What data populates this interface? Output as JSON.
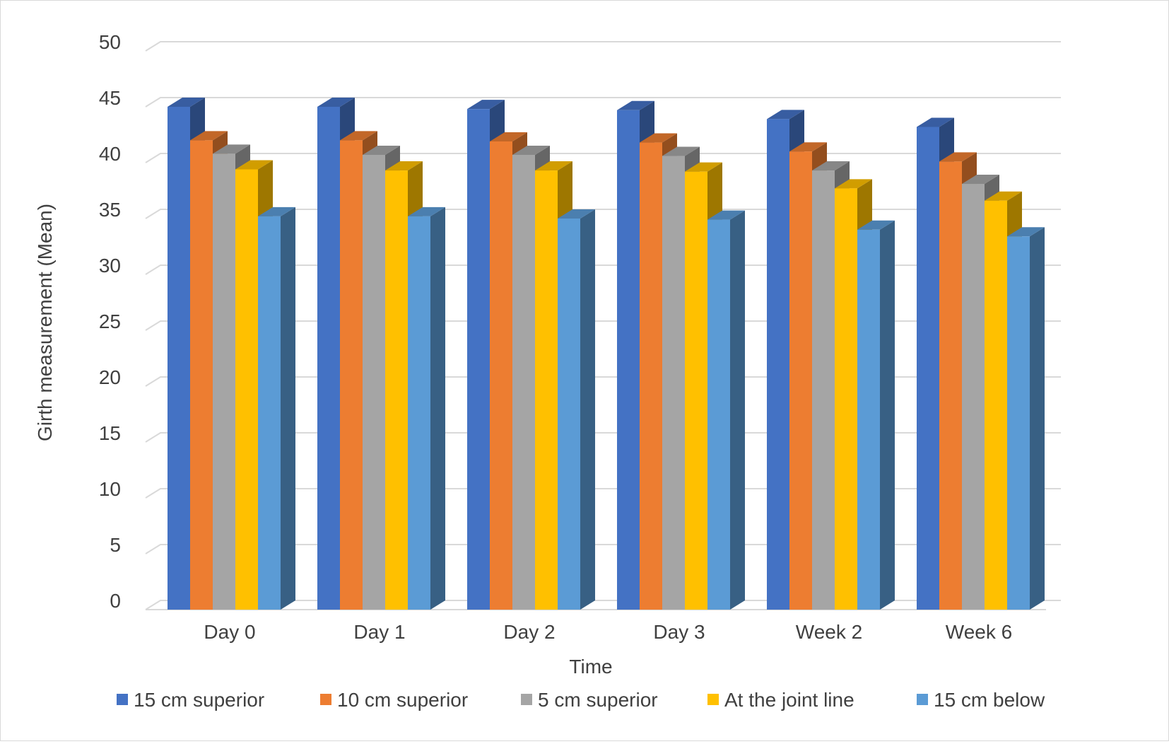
{
  "chart_data": {
    "type": "bar",
    "title": "",
    "xlabel": "Time",
    "ylabel": "Girth measurement (Mean)",
    "ylim": [
      0,
      50
    ],
    "yticks": [
      0,
      5,
      10,
      15,
      20,
      25,
      30,
      35,
      40,
      45,
      50
    ],
    "grid": true,
    "legend_position": "bottom",
    "categories": [
      "Day 0",
      "Day 1",
      "Day 2",
      "Day 3",
      "Week 2",
      "Week 6"
    ],
    "series": [
      {
        "name": "15 cm superior",
        "color": "#4472C4",
        "values": [
          45.0,
          45.0,
          44.8,
          44.7,
          43.9,
          43.2
        ]
      },
      {
        "name": "10 cm superior",
        "color": "#ED7D31",
        "values": [
          42.0,
          42.0,
          41.9,
          41.8,
          41.0,
          40.1
        ]
      },
      {
        "name": "5 cm superior",
        "color": "#A5A5A5",
        "values": [
          40.8,
          40.7,
          40.7,
          40.6,
          39.3,
          38.1
        ]
      },
      {
        "name": "At the joint line",
        "color": "#FFC000",
        "values": [
          39.4,
          39.3,
          39.3,
          39.2,
          37.7,
          36.6
        ]
      },
      {
        "name": "15 cm below",
        "color": "#5B9BD5",
        "values": [
          35.2,
          35.2,
          35.0,
          34.9,
          34.0,
          33.4
        ]
      }
    ]
  }
}
